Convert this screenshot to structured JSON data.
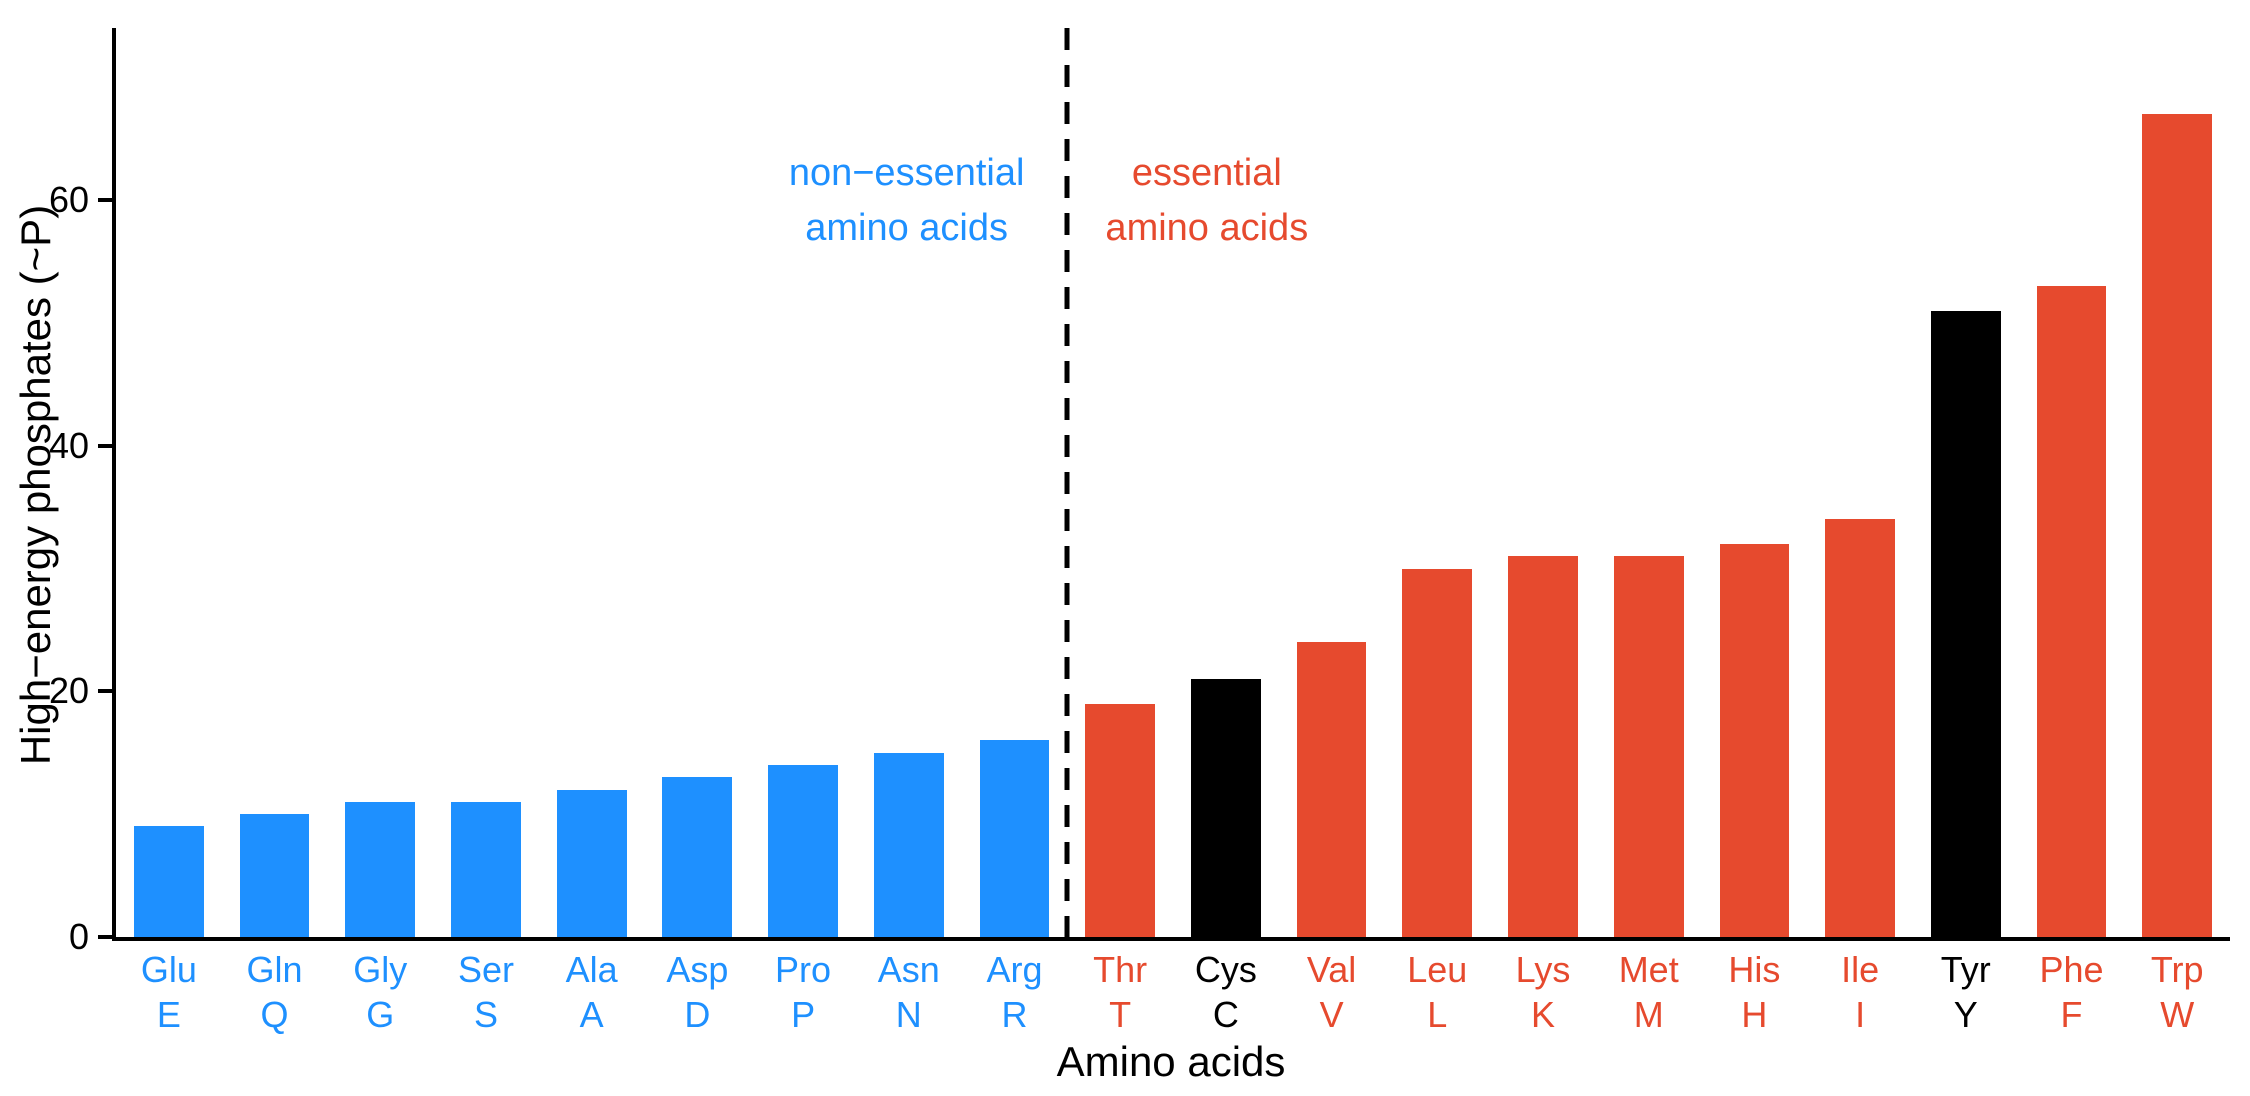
{
  "chart_data": {
    "type": "bar",
    "title": "",
    "xlabel": "Amino acids",
    "ylabel": "High−energy phosphates (~P)",
    "ylim": [
      0,
      74
    ],
    "yticks": [
      0,
      20,
      40,
      60
    ],
    "grid": false,
    "legend_position": "none",
    "separator": {
      "style": "dashed",
      "color": "#000000",
      "after_category_index": 8
    },
    "annotations": [
      {
        "id": "non-essential",
        "lines": [
          "non−essential",
          "amino acids"
        ],
        "color": "#1E90FF"
      },
      {
        "id": "essential",
        "lines": [
          "essential",
          "amino acids"
        ],
        "color": "#E64A2E"
      }
    ],
    "categories": [
      "Glu",
      "Gln",
      "Gly",
      "Ser",
      "Ala",
      "Asp",
      "Pro",
      "Asn",
      "Arg",
      "Thr",
      "Cys",
      "Val",
      "Leu",
      "Lys",
      "Met",
      "His",
      "Ile",
      "Tyr",
      "Phe",
      "Trp"
    ],
    "letters": [
      "E",
      "Q",
      "G",
      "S",
      "A",
      "D",
      "P",
      "N",
      "R",
      "T",
      "C",
      "V",
      "L",
      "K",
      "M",
      "H",
      "I",
      "Y",
      "F",
      "W"
    ],
    "values": [
      9,
      10,
      11,
      11,
      12,
      13,
      14,
      15,
      16,
      19,
      21,
      24,
      30,
      31,
      31,
      32,
      34,
      51,
      53,
      67
    ],
    "bar_colors": [
      "#1E90FF",
      "#1E90FF",
      "#1E90FF",
      "#1E90FF",
      "#1E90FF",
      "#1E90FF",
      "#1E90FF",
      "#1E90FF",
      "#1E90FF",
      "#E64A2E",
      "#000000",
      "#E64A2E",
      "#E64A2E",
      "#E64A2E",
      "#E64A2E",
      "#E64A2E",
      "#E64A2E",
      "#000000",
      "#E64A2E",
      "#E64A2E"
    ]
  },
  "colors": {
    "non_essential": "#1E90FF",
    "essential": "#E64A2E",
    "neutral": "#000000",
    "background": "#FFFFFF",
    "axis": "#000000"
  }
}
